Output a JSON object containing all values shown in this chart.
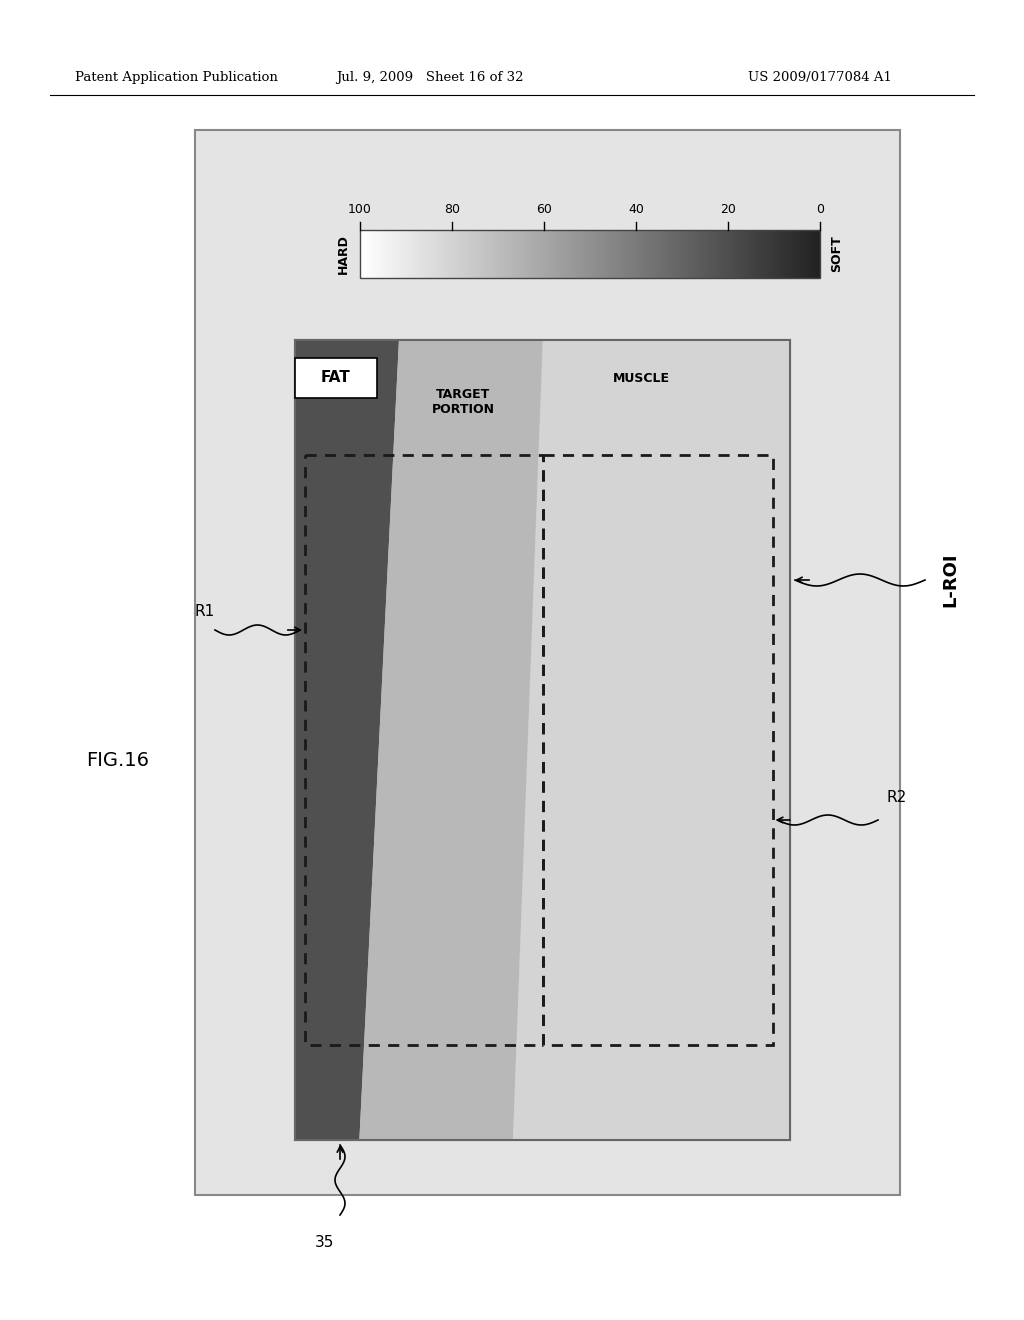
{
  "header_left": "Patent Application Publication",
  "header_mid": "Jul. 9, 2009   Sheet 16 of 32",
  "header_right": "US 2009/0177084 A1",
  "fig_label": "FIG.16",
  "label_hard": "HARD",
  "label_soft": "SOFT",
  "label_fat": "FAT",
  "label_target": "TARGET\nPORTION",
  "label_muscle": "MUSCLE",
  "label_lroi": "L-ROI",
  "label_r1": "R1",
  "label_r2": "R2",
  "label_35": "35",
  "fat_color": "#484848",
  "target_color": "#b8b8b8",
  "muscle_color": "#d4d4d4",
  "outer_bg": "#e0e0e0",
  "image_bg": "#cccccc"
}
